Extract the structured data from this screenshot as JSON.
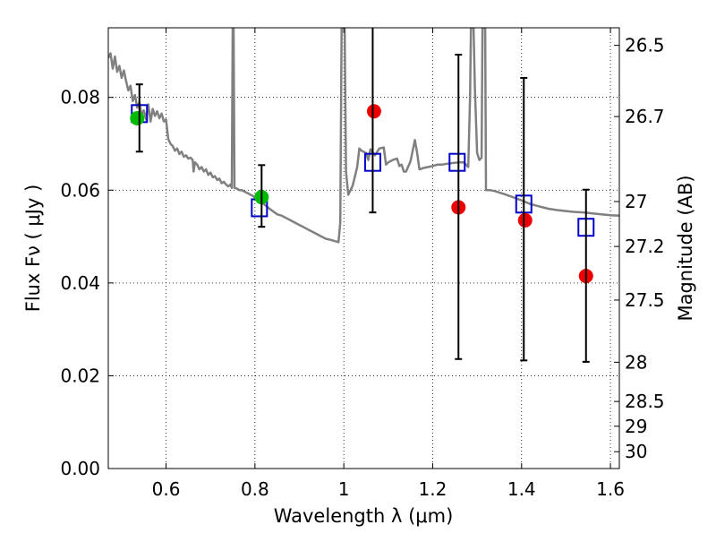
{
  "chart_data": {
    "type": "scatter",
    "xlabel": "Wavelength  λ (μm)",
    "ylabel": "Flux  Fν  ( μJy )",
    "ylabel_right": "Magnitude (AB)",
    "xlim": [
      0.47,
      1.62
    ],
    "ylim": [
      0.0,
      0.095
    ],
    "grid": true,
    "x_ticks": [
      {
        "value": 0.6,
        "label": "0.6"
      },
      {
        "value": 0.8,
        "label": "0.8"
      },
      {
        "value": 1.0,
        "label": "1"
      },
      {
        "value": 1.2,
        "label": "1.2"
      },
      {
        "value": 1.4,
        "label": "1.4"
      },
      {
        "value": 1.6,
        "label": "1.6"
      }
    ],
    "y_ticks": [
      {
        "value": 0.0,
        "label": "0.00"
      },
      {
        "value": 0.02,
        "label": "0.02"
      },
      {
        "value": 0.04,
        "label": "0.04"
      },
      {
        "value": 0.06,
        "label": "0.06"
      },
      {
        "value": 0.08,
        "label": "0.08"
      }
    ],
    "mag_ticks": [
      {
        "value": 26.5,
        "label": "26.5"
      },
      {
        "value": 26.7,
        "label": "26.7"
      },
      {
        "value": 27.0,
        "label": "27"
      },
      {
        "value": 27.2,
        "label": "27.2"
      },
      {
        "value": 27.5,
        "label": "27.5"
      },
      {
        "value": 28.0,
        "label": "28"
      },
      {
        "value": 28.5,
        "label": "28.5"
      },
      {
        "value": 29.0,
        "label": "29"
      },
      {
        "value": 30.0,
        "label": "30"
      }
    ],
    "series": [
      {
        "type": "line",
        "color": "#808080",
        "points": [
          [
            0.47,
            0.0885
          ],
          [
            0.475,
            0.0895
          ],
          [
            0.48,
            0.0862
          ],
          [
            0.485,
            0.0888
          ],
          [
            0.49,
            0.0855
          ],
          [
            0.495,
            0.0868
          ],
          [
            0.5,
            0.0842
          ],
          [
            0.505,
            0.0858
          ],
          [
            0.51,
            0.0835
          ],
          [
            0.515,
            0.0815
          ],
          [
            0.52,
            0.0825
          ],
          [
            0.525,
            0.0792
          ],
          [
            0.53,
            0.0805
          ],
          [
            0.535,
            0.0778
          ],
          [
            0.54,
            0.079
          ],
          [
            0.545,
            0.0762
          ],
          [
            0.55,
            0.0772
          ],
          [
            0.555,
            0.0752
          ],
          [
            0.56,
            0.0785
          ],
          [
            0.565,
            0.0748
          ],
          [
            0.57,
            0.0775
          ],
          [
            0.575,
            0.076
          ],
          [
            0.58,
            0.077
          ],
          [
            0.585,
            0.0755
          ],
          [
            0.59,
            0.0765
          ],
          [
            0.595,
            0.0748
          ],
          [
            0.6,
            0.0752
          ],
          [
            0.605,
            0.071
          ],
          [
            0.61,
            0.07
          ],
          [
            0.615,
            0.0695
          ],
          [
            0.62,
            0.0685
          ],
          [
            0.625,
            0.069
          ],
          [
            0.63,
            0.0678
          ],
          [
            0.635,
            0.0683
          ],
          [
            0.64,
            0.0672
          ],
          [
            0.645,
            0.0675
          ],
          [
            0.65,
            0.0668
          ],
          [
            0.655,
            0.067
          ],
          [
            0.66,
            0.0665
          ],
          [
            0.662,
            0.064
          ],
          [
            0.665,
            0.066
          ],
          [
            0.67,
            0.0655
          ],
          [
            0.675,
            0.0645
          ],
          [
            0.68,
            0.065
          ],
          [
            0.685,
            0.064
          ],
          [
            0.69,
            0.0645
          ],
          [
            0.695,
            0.0633
          ],
          [
            0.7,
            0.0638
          ],
          [
            0.705,
            0.0628
          ],
          [
            0.71,
            0.063
          ],
          [
            0.715,
            0.0622
          ],
          [
            0.72,
            0.0625
          ],
          [
            0.725,
            0.0615
          ],
          [
            0.73,
            0.0618
          ],
          [
            0.735,
            0.0612
          ],
          [
            0.74,
            0.0608
          ],
          [
            0.745,
            0.0612
          ],
          [
            0.748,
            0.0605
          ],
          [
            0.75,
            0.095
          ],
          [
            0.752,
            0.095
          ],
          [
            0.754,
            0.0605
          ],
          [
            0.76,
            0.0603
          ],
          [
            0.765,
            0.06
          ],
          [
            0.77,
            0.06
          ],
          [
            0.775,
            0.0598
          ],
          [
            0.78,
            0.0595
          ],
          [
            0.785,
            0.0593
          ],
          [
            0.79,
            0.059
          ],
          [
            0.795,
            0.0588
          ],
          [
            0.8,
            0.0584
          ],
          [
            0.81,
            0.0578
          ],
          [
            0.82,
            0.057
          ],
          [
            0.83,
            0.0562
          ],
          [
            0.84,
            0.0555
          ],
          [
            0.85,
            0.0548
          ],
          [
            0.86,
            0.0545
          ],
          [
            0.87,
            0.054
          ],
          [
            0.88,
            0.0535
          ],
          [
            0.89,
            0.053
          ],
          [
            0.9,
            0.0525
          ],
          [
            0.91,
            0.052
          ],
          [
            0.92,
            0.0515
          ],
          [
            0.93,
            0.051
          ],
          [
            0.94,
            0.0505
          ],
          [
            0.95,
            0.05
          ],
          [
            0.96,
            0.0495
          ],
          [
            0.97,
            0.0493
          ],
          [
            0.98,
            0.049
          ],
          [
            0.988,
            0.0488
          ],
          [
            0.992,
            0.053
          ],
          [
            0.995,
            0.095
          ],
          [
            1.002,
            0.095
          ],
          [
            1.005,
            0.064
          ],
          [
            1.01,
            0.059
          ],
          [
            1.02,
            0.061
          ],
          [
            1.03,
            0.065
          ],
          [
            1.035,
            0.069
          ],
          [
            1.04,
            0.0685
          ],
          [
            1.05,
            0.068
          ],
          [
            1.055,
            0.0665
          ],
          [
            1.06,
            0.0688
          ],
          [
            1.07,
            0.0675
          ],
          [
            1.08,
            0.069
          ],
          [
            1.09,
            0.0692
          ],
          [
            1.095,
            0.0655
          ],
          [
            1.1,
            0.066
          ],
          [
            1.11,
            0.0665
          ],
          [
            1.12,
            0.0668
          ],
          [
            1.125,
            0.0652
          ],
          [
            1.13,
            0.0655
          ],
          [
            1.135,
            0.064
          ],
          [
            1.14,
            0.064
          ],
          [
            1.15,
            0.0662
          ],
          [
            1.16,
            0.0708
          ],
          [
            1.165,
            0.068
          ],
          [
            1.17,
            0.0645
          ],
          [
            1.18,
            0.0648
          ],
          [
            1.19,
            0.065
          ],
          [
            1.2,
            0.0652
          ],
          [
            1.21,
            0.0655
          ],
          [
            1.22,
            0.0655
          ],
          [
            1.24,
            0.0658
          ],
          [
            1.26,
            0.066
          ],
          [
            1.27,
            0.066
          ],
          [
            1.28,
            0.065
          ],
          [
            1.284,
            0.08
          ],
          [
            1.286,
            0.095
          ],
          [
            1.292,
            0.095
          ],
          [
            1.295,
            0.082
          ],
          [
            1.3,
            0.068
          ],
          [
            1.305,
            0.0665
          ],
          [
            1.31,
            0.067
          ],
          [
            1.312,
            0.095
          ],
          [
            1.318,
            0.095
          ],
          [
            1.32,
            0.06
          ],
          [
            1.33,
            0.06
          ],
          [
            1.34,
            0.0598
          ],
          [
            1.35,
            0.0595
          ],
          [
            1.36,
            0.0592
          ],
          [
            1.38,
            0.0585
          ],
          [
            1.4,
            0.0578
          ],
          [
            1.42,
            0.057
          ],
          [
            1.44,
            0.0565
          ],
          [
            1.46,
            0.056
          ],
          [
            1.48,
            0.0557
          ],
          [
            1.5,
            0.0555
          ],
          [
            1.52,
            0.0553
          ],
          [
            1.54,
            0.0552
          ],
          [
            1.56,
            0.055
          ],
          [
            1.58,
            0.0548
          ],
          [
            1.6,
            0.0546
          ],
          [
            1.62,
            0.0545
          ]
        ]
      },
      {
        "type": "scatter",
        "marker": "square-open",
        "color": "#0000cc",
        "x": [
          0.54,
          0.81,
          1.065,
          1.255,
          1.405,
          1.545
        ],
        "y": [
          0.0765,
          0.0562,
          0.066,
          0.066,
          0.057,
          0.052
        ]
      },
      {
        "type": "scatter",
        "marker": "circle",
        "color": "#00bb00",
        "x": [
          0.535,
          0.815
        ],
        "y": [
          0.0755,
          0.0585
        ]
      },
      {
        "type": "scatter",
        "marker": "circle",
        "color": "#ee0000",
        "x": [
          1.068,
          1.258,
          1.408,
          1.545
        ],
        "y": [
          0.077,
          0.0563,
          0.0535,
          0.0415
        ]
      },
      {
        "type": "errorbar",
        "color": "#000000",
        "x": [
          0.54,
          0.815,
          1.065,
          1.258,
          1.405,
          1.545
        ],
        "low": [
          0.0683,
          0.0521,
          0.0552,
          0.0236,
          0.0233,
          0.023
        ],
        "high": [
          0.0828,
          0.0654,
          0.095,
          0.0892,
          0.0842,
          0.0601
        ]
      }
    ]
  }
}
